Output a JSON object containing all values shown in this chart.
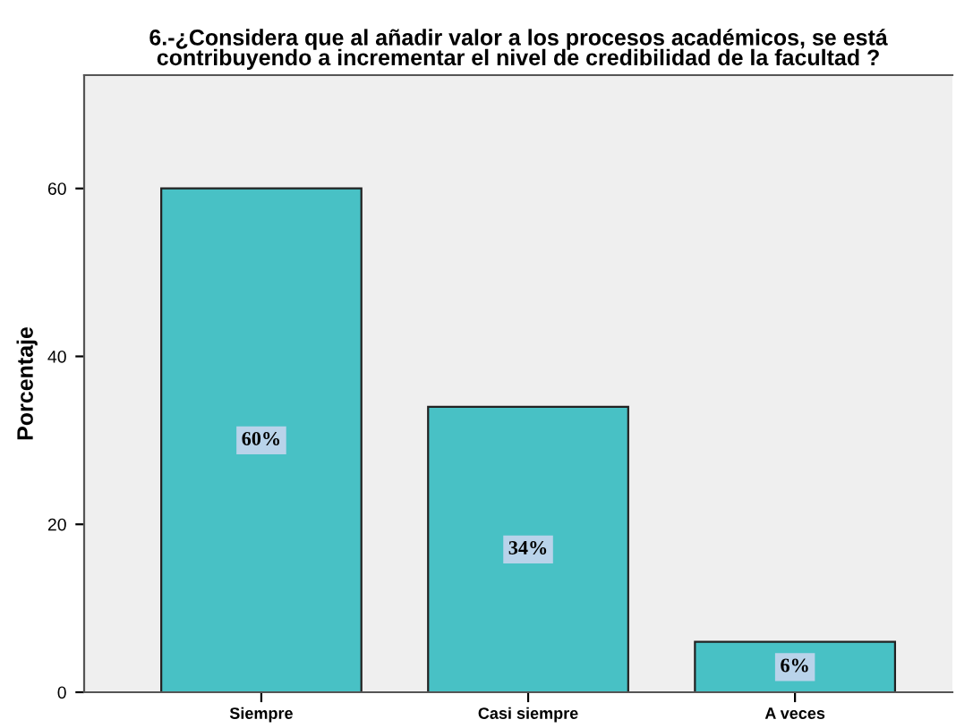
{
  "chart_data": {
    "type": "bar",
    "title": "6.-¿Considera que al añadir valor a los procesos académicos, se está\ncontribuyendo a incrementar el nivel de credibilidad de la facultad ?",
    "ylabel": "Porcentaje",
    "categories": [
      "Siempre",
      "Casi siempre",
      "A veces"
    ],
    "values": [
      60,
      34,
      6
    ],
    "value_labels": [
      "60%",
      "34%",
      "6%"
    ],
    "color": "#48c1c5",
    "ylim": [
      0,
      73.5
    ],
    "yticks": [
      0,
      20,
      40,
      60
    ],
    "grid": false,
    "legend": false
  }
}
